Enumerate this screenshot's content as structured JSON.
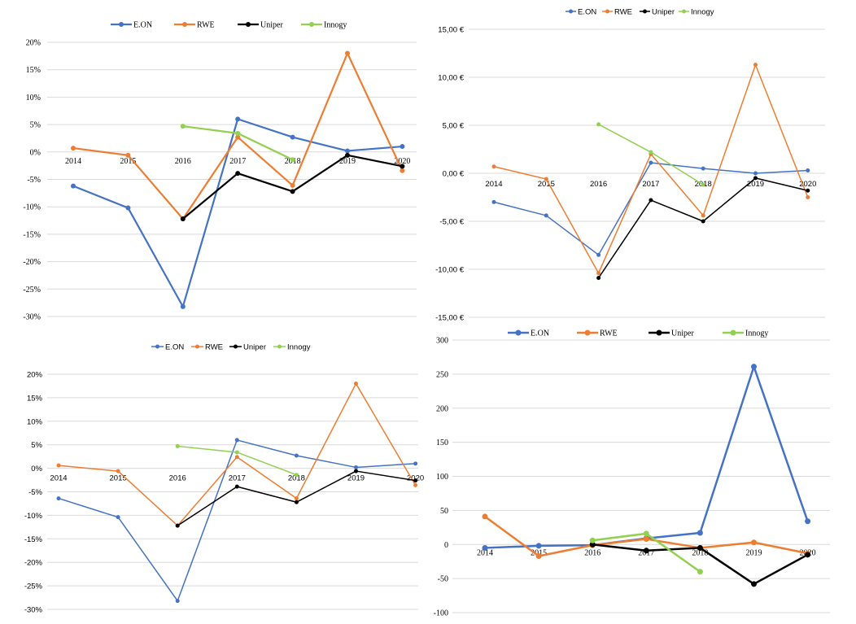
{
  "chart_data": [
    {
      "type": "line",
      "title": "",
      "xlabel": "",
      "ylabel": "",
      "categories": [
        "2014",
        "2015",
        "2016",
        "2017",
        "2018",
        "2019",
        "2020"
      ],
      "yticks": [
        "20%",
        "15%",
        "10%",
        "5%",
        "0%",
        "-5%",
        "-10%",
        "-15%",
        "-20%",
        "-25%",
        "-30%"
      ],
      "ylim": [
        -30,
        20
      ],
      "grid": true,
      "legend": "top",
      "series": [
        {
          "name": "E.ON",
          "color": "#4472c4",
          "values": [
            -6.2,
            -10.2,
            -28.2,
            6.0,
            2.7,
            0.2,
            1.0
          ]
        },
        {
          "name": "RWE",
          "color": "#ed7d31",
          "values": [
            0.7,
            -0.6,
            -12.2,
            2.7,
            -6.1,
            18.0,
            -3.4
          ]
        },
        {
          "name": "Uniper",
          "color": "#000000",
          "values": [
            null,
            null,
            -12.2,
            -3.9,
            -7.2,
            -0.6,
            -2.6
          ]
        },
        {
          "name": "Innogy",
          "color": "#92d050",
          "values": [
            null,
            null,
            4.7,
            3.4,
            -1.4,
            null,
            null
          ]
        }
      ]
    },
    {
      "type": "line",
      "title": "",
      "xlabel": "",
      "ylabel": "",
      "categories": [
        "2014",
        "2015",
        "2016",
        "2017",
        "2018",
        "2019",
        "2020"
      ],
      "yticks": [
        "15,00 €",
        "10,00 €",
        "5,00 €",
        "0,00 €",
        "-5,00 €",
        "-10,00 €",
        "-15,00 €"
      ],
      "ylim": [
        -15,
        15
      ],
      "grid": true,
      "legend": "top",
      "series": [
        {
          "name": "E.ON",
          "color": "#4472c4",
          "values": [
            -3.0,
            -4.4,
            -8.5,
            1.1,
            0.5,
            0.0,
            0.3
          ]
        },
        {
          "name": "RWE",
          "color": "#ed7d31",
          "values": [
            0.7,
            -0.6,
            -10.4,
            2.0,
            -4.4,
            11.3,
            -2.5
          ]
        },
        {
          "name": "Uniper",
          "color": "#000000",
          "values": [
            null,
            null,
            -10.9,
            -2.8,
            -5.0,
            -0.5,
            -1.8
          ]
        },
        {
          "name": "Innogy",
          "color": "#92d050",
          "values": [
            null,
            null,
            5.1,
            2.2,
            -1.2,
            null,
            null
          ]
        }
      ]
    },
    {
      "type": "line",
      "title": "",
      "xlabel": "",
      "ylabel": "",
      "categories": [
        "2014",
        "2015",
        "2016",
        "2017",
        "2018",
        "2019",
        "2020"
      ],
      "yticks": [
        "20%",
        "15%",
        "10%",
        "5%",
        "0%",
        "-5%",
        "-10%",
        "-15%",
        "-20%",
        "-25%",
        "-30%"
      ],
      "ylim": [
        -30,
        20
      ],
      "grid": true,
      "legend": "top",
      "series": [
        {
          "name": "E.ON",
          "color": "#4472c4",
          "values": [
            -6.4,
            -10.4,
            -28.2,
            6.0,
            2.7,
            0.2,
            1.0
          ]
        },
        {
          "name": "RWE",
          "color": "#ed7d31",
          "values": [
            0.6,
            -0.6,
            -12.2,
            2.4,
            -6.4,
            18.0,
            -3.6
          ]
        },
        {
          "name": "Uniper",
          "color": "#000000",
          "values": [
            null,
            null,
            -12.2,
            -3.9,
            -7.2,
            -0.6,
            -2.6
          ]
        },
        {
          "name": "Innogy",
          "color": "#92d050",
          "values": [
            null,
            null,
            4.7,
            3.4,
            -1.4,
            null,
            null
          ]
        }
      ]
    },
    {
      "type": "line",
      "title": "",
      "xlabel": "",
      "ylabel": "",
      "categories": [
        "2014",
        "2015",
        "2016",
        "2017",
        "2018",
        "2019",
        "2020"
      ],
      "yticks": [
        "300",
        "250",
        "200",
        "150",
        "100",
        "50",
        "0",
        "-50",
        "-100"
      ],
      "ylim": [
        -100,
        300
      ],
      "grid": true,
      "legend": "top",
      "series": [
        {
          "name": "E.ON",
          "color": "#4472c4",
          "values": [
            -5,
            -2,
            -1,
            9,
            17,
            261,
            34
          ]
        },
        {
          "name": "RWE",
          "color": "#ed7d31",
          "values": [
            41,
            -17,
            -1,
            8,
            -5,
            3,
            -13
          ]
        },
        {
          "name": "Uniper",
          "color": "#000000",
          "values": [
            null,
            null,
            0,
            -9,
            -5,
            -58,
            -15
          ]
        },
        {
          "name": "Innogy",
          "color": "#92d050",
          "values": [
            null,
            null,
            6,
            16,
            -40,
            null,
            null
          ]
        }
      ]
    }
  ]
}
